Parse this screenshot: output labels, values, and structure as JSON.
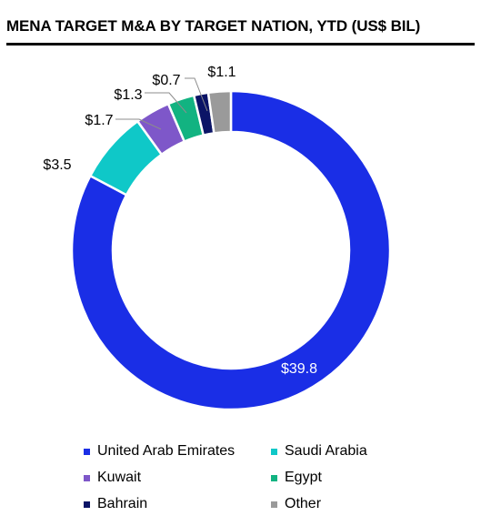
{
  "title": "MENA TARGET M&A BY TARGET NATION, YTD (US$ BIL)",
  "chart_data": {
    "type": "pie",
    "donut": true,
    "categories": [
      "United Arab Emirates",
      "Saudi Arabia",
      "Kuwait",
      "Egypt",
      "Bahrain",
      "Other"
    ],
    "values": [
      39.8,
      3.5,
      1.7,
      1.3,
      0.7,
      1.1
    ],
    "labels": [
      "$39.8",
      "$3.5",
      "$1.7",
      "$1.3",
      "$0.7",
      "$1.1"
    ],
    "colors": [
      "#1a2ee6",
      "#0fc8c8",
      "#7e57c9",
      "#12b381",
      "#0b1466",
      "#9a9a9a"
    ],
    "legend": "bottom",
    "start_angle_deg": 0,
    "direction": "clockwise"
  }
}
